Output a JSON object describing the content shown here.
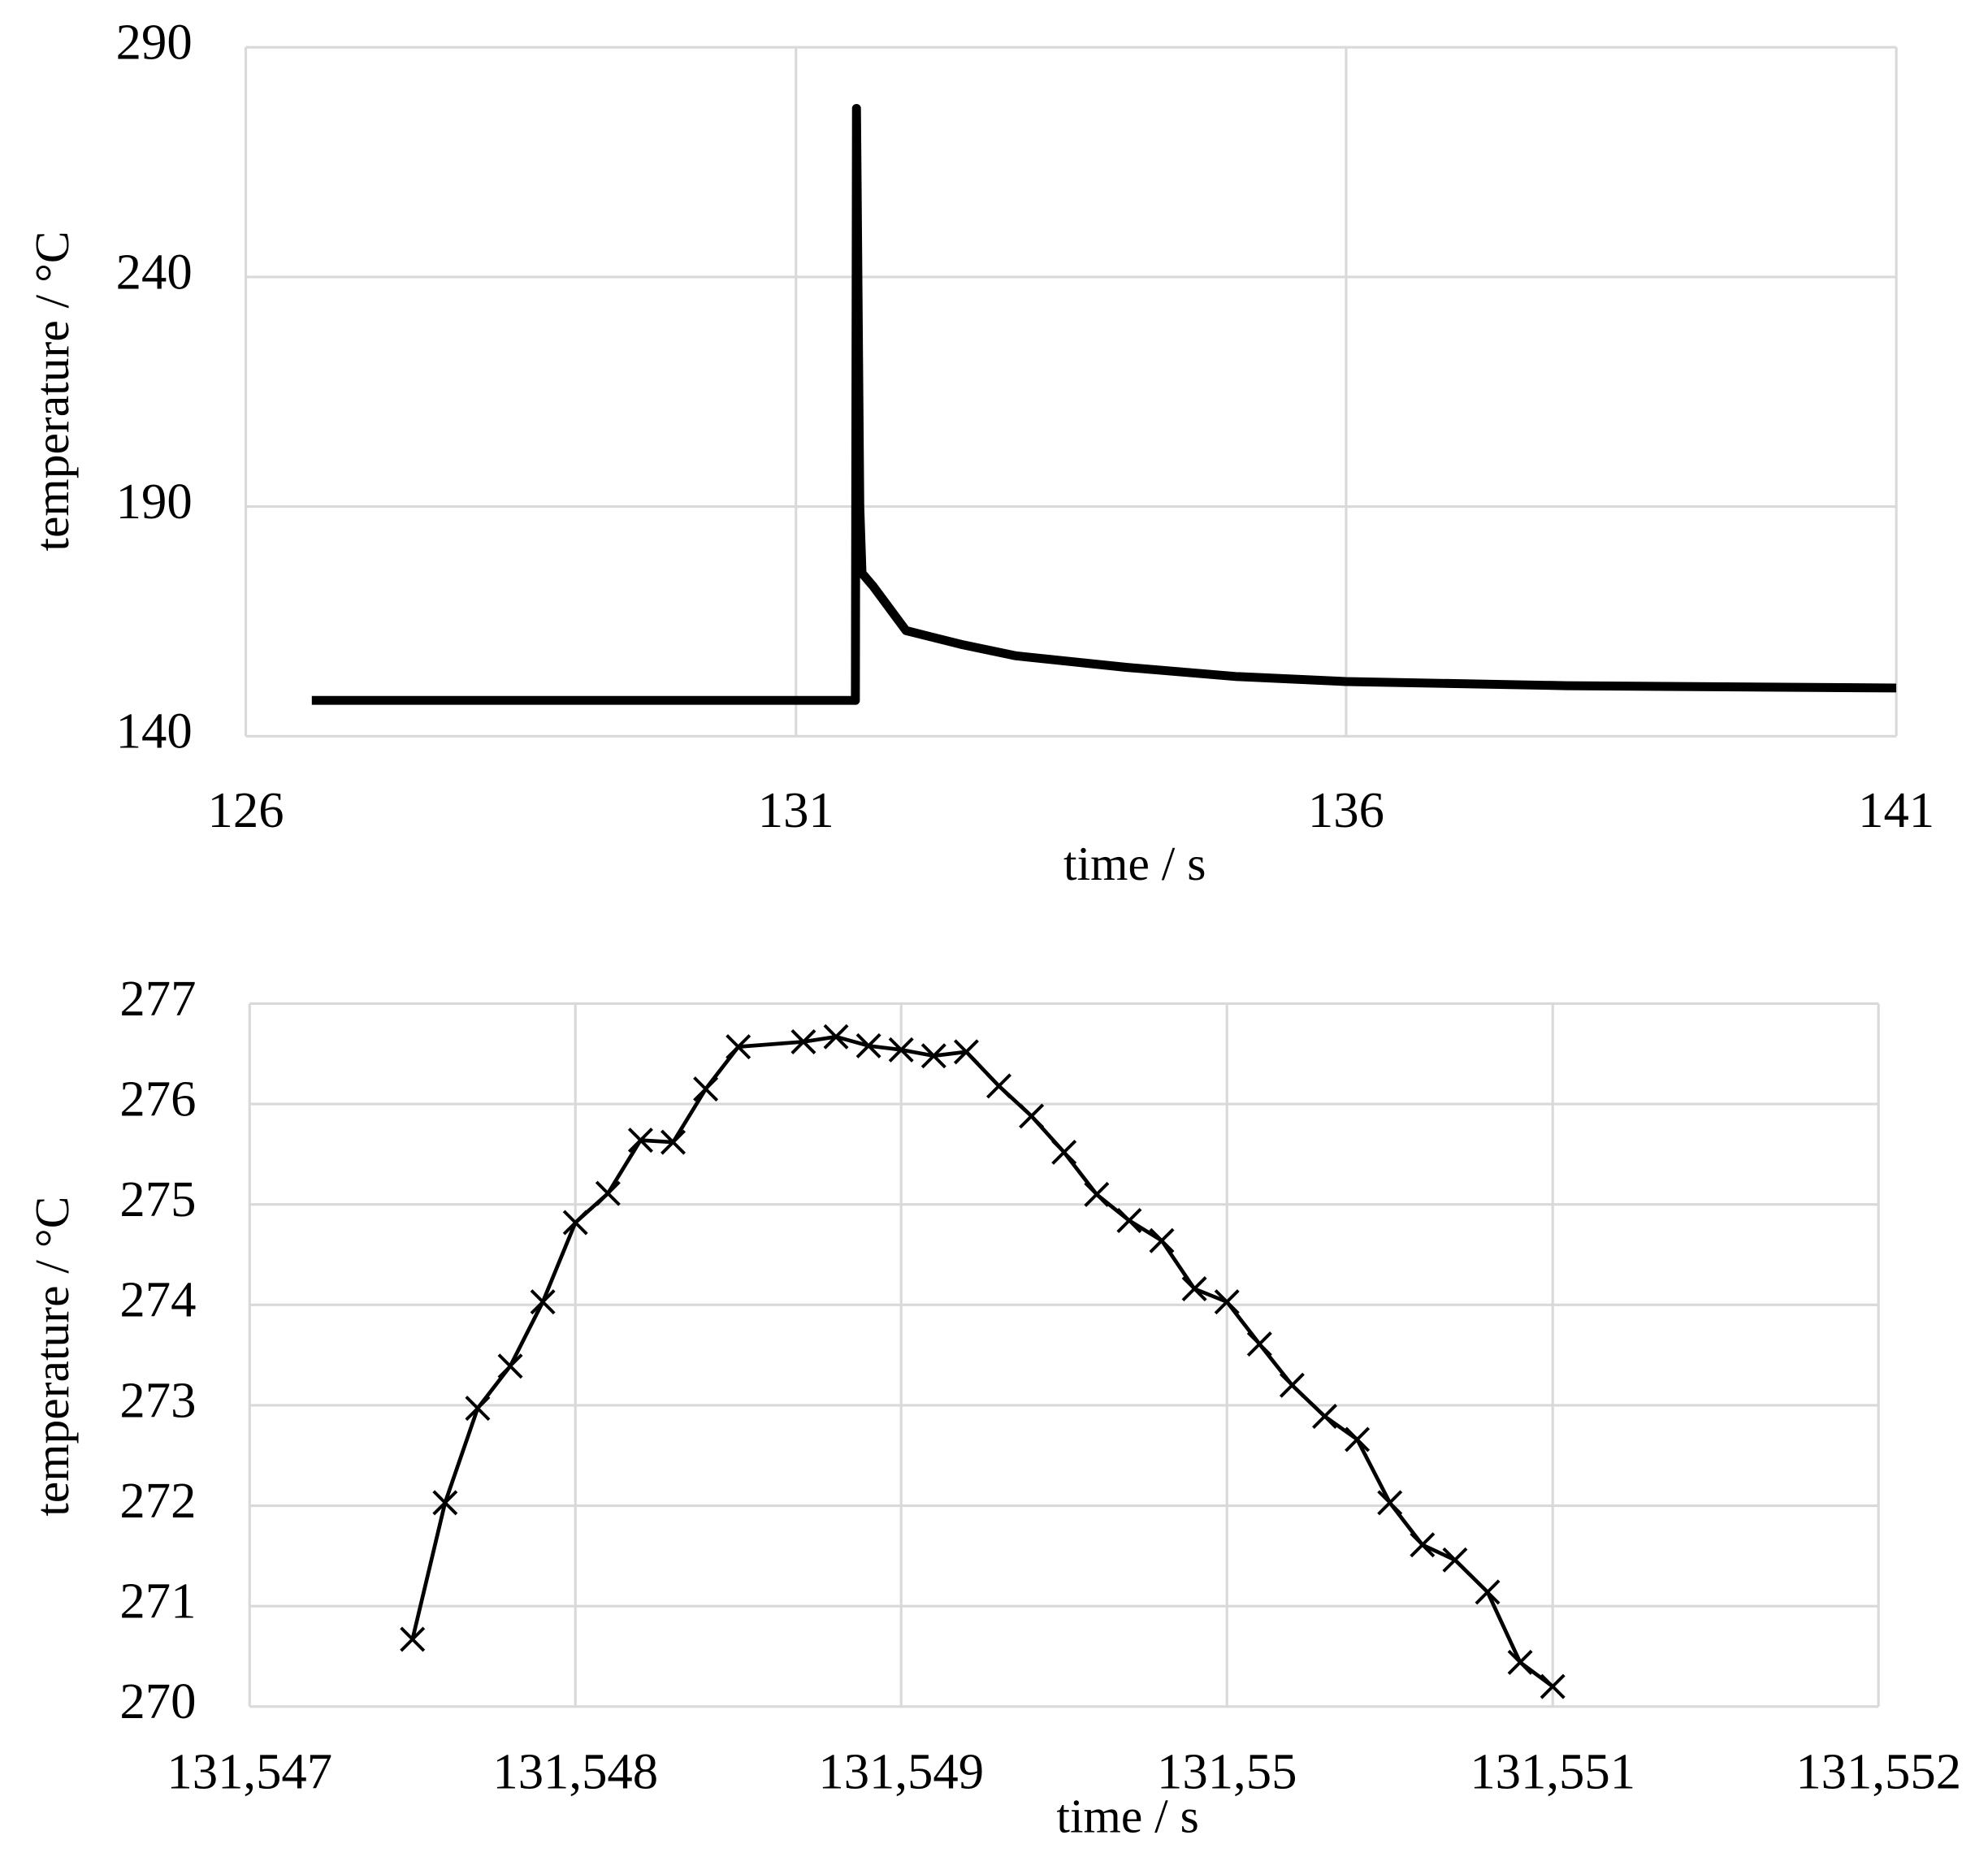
{
  "chart_data": [
    {
      "type": "line",
      "x_label": "time / s",
      "y_label": "temperature / °C",
      "xlim": [
        126,
        141
      ],
      "xticks": [
        126,
        131,
        136,
        141
      ],
      "ylim": [
        140,
        290
      ],
      "yticks": [
        140,
        190,
        240,
        290
      ],
      "grid": true,
      "series": [
        {
          "color": "#000000",
          "x": [
            126.6,
            131.5,
            131.54,
            131.55,
            131.58,
            131.6,
            131.7,
            132,
            132.5,
            133,
            134,
            135,
            136,
            138,
            141
          ],
          "values": [
            147.8,
            147.8,
            147.8,
            276.7,
            190,
            175.5,
            172.7,
            163,
            160,
            157.5,
            155,
            153,
            151.9,
            151,
            150.5
          ]
        }
      ]
    },
    {
      "type": "line",
      "x_label": "time / s",
      "y_label": "temperature / °C",
      "xlim": [
        131.547,
        131.552
      ],
      "xticks": [
        {
          "value": 131.547,
          "label": "131,547"
        },
        {
          "value": 131.548,
          "label": "131,548"
        },
        {
          "value": 131.549,
          "label": "131,549"
        },
        {
          "value": 131.55,
          "label": "131,55"
        },
        {
          "value": 131.551,
          "label": "131,551"
        },
        {
          "value": 131.552,
          "label": "131,552"
        }
      ],
      "ylim": [
        270,
        277
      ],
      "yticks": [
        270,
        271,
        272,
        273,
        274,
        275,
        276,
        277
      ],
      "grid": true,
      "series": [
        {
          "color": "#000000",
          "marker": "x",
          "x": [
            131.5475,
            131.5476,
            131.5477,
            131.5478,
            131.5479,
            131.548,
            131.5481,
            131.5482,
            131.5483,
            131.5484,
            131.5485,
            131.5487,
            131.5488,
            131.5489,
            131.549,
            131.5491,
            131.5492,
            131.5493,
            131.5494,
            131.5495,
            131.5496,
            131.5497,
            131.5498,
            131.5499,
            131.55,
            131.5501,
            131.5502,
            131.5503,
            131.5504,
            131.5505,
            131.5506,
            131.5507,
            131.5508,
            131.5509,
            131.551
          ],
          "values": [
            270.67,
            272.03,
            272.97,
            273.39,
            274.03,
            274.82,
            275.11,
            275.64,
            275.62,
            276.15,
            276.57,
            276.62,
            276.67,
            276.58,
            276.54,
            276.48,
            276.52,
            276.18,
            275.88,
            275.52,
            275.1,
            274.84,
            274.64,
            274.16,
            274.03,
            273.61,
            273.2,
            272.89,
            272.66,
            272.03,
            271.61,
            271.46,
            271.14,
            270.44,
            270.2
          ]
        }
      ]
    }
  ]
}
